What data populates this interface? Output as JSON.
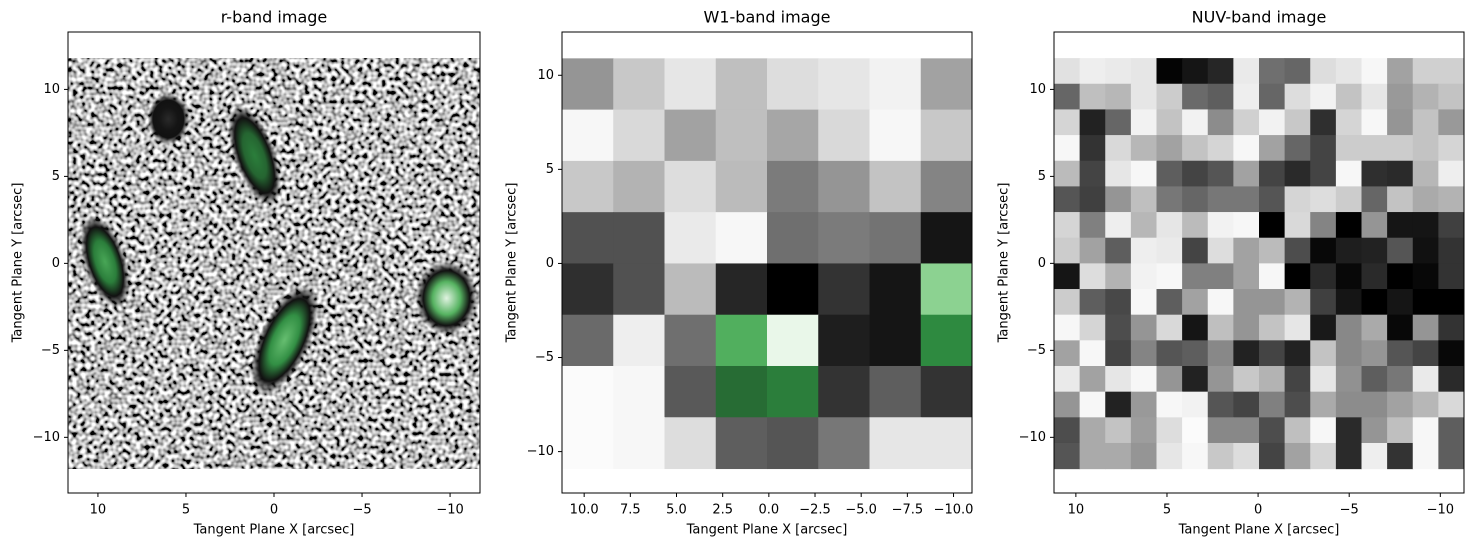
{
  "chart_data": [
    {
      "type": "image",
      "title": "r-band image",
      "xlabel": "Tangent Plane X [arcsec]",
      "ylabel": "Tangent Plane Y [arcsec]",
      "xlim": [
        11.7,
        -11.7
      ],
      "ylim": [
        -13.2,
        13.3
      ],
      "extent": [
        11.7,
        -11.7,
        -11.8,
        11.8
      ],
      "xticks": [
        10,
        5,
        0,
        {
          "value": -5,
          "label": "−5"
        },
        {
          "value": -10,
          "label": "−10"
        }
      ],
      "yticks": [
        {
          "value": -10,
          "label": "−10"
        },
        {
          "value": -5,
          "label": "−5"
        },
        0,
        5,
        10
      ],
      "sources": [
        {
          "x": 6.0,
          "y": 8.3,
          "a": 1.1,
          "b": 0.9,
          "angle": 0,
          "peak": 50
        },
        {
          "x": 1.1,
          "y": 6.2,
          "a": 2.3,
          "b": 0.9,
          "angle": -20,
          "peak": 68
        },
        {
          "x": 9.6,
          "y": 0.1,
          "a": 2.1,
          "b": 0.9,
          "angle": -18,
          "peak": 76
        },
        {
          "x": -0.6,
          "y": -4.4,
          "a": 2.6,
          "b": 1.1,
          "angle": 25,
          "peak": 82
        },
        {
          "x": -9.8,
          "y": -2.0,
          "a": 1.6,
          "b": 1.35,
          "angle": 0,
          "peak": 98
        }
      ]
    },
    {
      "type": "image",
      "title": "W1-band image",
      "xlabel": "Tangent Plane X [arcsec]",
      "ylabel": "Tangent Plane Y [arcsec]",
      "xlim": [
        11.2,
        -11.0
      ],
      "ylim": [
        -12.2,
        12.3
      ],
      "extent": [
        11.2,
        -11.0,
        -10.9,
        10.9
      ],
      "xticks": [
        {
          "value": 10,
          "label": "10.0"
        },
        7.5,
        {
          "value": 5,
          "label": "5.0"
        },
        2.5,
        {
          "value": 0,
          "label": "0.0"
        },
        {
          "value": -2.5,
          "label": "−2.5"
        },
        {
          "value": -5,
          "label": "−5.0"
        },
        {
          "value": -7.5,
          "label": "−7.5"
        },
        {
          "value": -10,
          "label": "−10.0"
        }
      ],
      "yticks": [
        {
          "value": -10,
          "label": "−10"
        },
        {
          "value": -5,
          "label": "−5"
        },
        0,
        5,
        10
      ],
      "values": [
        [
          25,
          13,
          6,
          15,
          8,
          6,
          3,
          22
        ],
        [
          2,
          9,
          22,
          15,
          21,
          9,
          2,
          13
        ],
        [
          13,
          18,
          8,
          16,
          31,
          25,
          14,
          29
        ],
        [
          41,
          41,
          5,
          2,
          34,
          31,
          33,
          55
        ],
        [
          49,
          41,
          16,
          51,
          60,
          48,
          55,
          88
        ],
        [
          35,
          4,
          34,
          78,
          99,
          53,
          55,
          70
        ],
        [
          1,
          2,
          39,
          65,
          68,
          48,
          38,
          48
        ],
        [
          1,
          2,
          8,
          38,
          40,
          32,
          6,
          6
        ]
      ]
    },
    {
      "type": "image",
      "title": "NUV-band image",
      "xlabel": "Tangent Plane X [arcsec]",
      "ylabel": "Tangent Plane Y [arcsec]",
      "xlim": [
        11.2,
        -11.3
      ],
      "ylim": [
        -13.2,
        13.3
      ],
      "extent": [
        11.2,
        -11.3,
        -11.8,
        11.8
      ],
      "xticks": [
        10,
        5,
        0,
        {
          "value": -5,
          "label": "−5"
        },
        {
          "value": -10,
          "label": "−10"
        }
      ],
      "yticks": [
        {
          "value": -10,
          "label": "−10"
        },
        {
          "value": -5,
          "label": "−5"
        },
        0,
        5,
        10
      ],
      "values": [
        [
          7,
          4,
          5,
          6,
          59,
          55,
          51,
          5,
          34,
          36,
          8,
          6,
          2,
          22,
          11,
          11
        ],
        [
          36,
          15,
          17,
          6,
          12,
          35,
          38,
          4,
          36,
          8,
          3,
          14,
          6,
          24,
          18,
          14
        ],
        [
          10,
          52,
          36,
          3,
          14,
          3,
          27,
          11,
          3,
          13,
          49,
          10,
          2,
          25,
          14,
          24
        ],
        [
          2,
          48,
          9,
          17,
          22,
          14,
          10,
          2,
          22,
          36,
          44,
          12,
          12,
          12,
          14,
          10
        ],
        [
          16,
          44,
          6,
          2,
          38,
          44,
          40,
          22,
          44,
          50,
          44,
          2,
          49,
          50,
          17,
          4
        ],
        [
          40,
          45,
          25,
          15,
          32,
          36,
          32,
          32,
          40,
          10,
          8,
          12,
          36,
          14,
          20,
          18
        ],
        [
          10,
          30,
          4,
          17,
          6,
          16,
          3,
          2,
          60,
          9,
          29,
          60,
          25,
          55,
          55,
          45
        ],
        [
          12,
          22,
          38,
          4,
          5,
          44,
          8,
          22,
          16,
          42,
          58,
          53,
          52,
          40,
          56,
          48
        ],
        [
          55,
          8,
          18,
          3,
          2,
          30,
          30,
          22,
          2,
          60,
          50,
          58,
          50,
          60,
          58,
          48
        ],
        [
          12,
          38,
          43,
          2,
          38,
          22,
          2,
          25,
          25,
          18,
          45,
          55,
          60,
          55,
          60,
          60
        ],
        [
          2,
          10,
          42,
          25,
          9,
          55,
          15,
          25,
          14,
          6,
          54,
          28,
          20,
          58,
          25,
          48
        ],
        [
          22,
          2,
          44,
          29,
          40,
          38,
          28,
          52,
          44,
          52,
          14,
          28,
          25,
          40,
          44,
          58
        ],
        [
          5,
          22,
          6,
          2,
          25,
          52,
          25,
          13,
          18,
          44,
          6,
          26,
          38,
          32,
          5,
          50
        ],
        [
          25,
          2,
          52,
          24,
          2,
          3,
          40,
          44,
          30,
          42,
          20,
          27,
          27,
          22,
          17,
          9
        ],
        [
          42,
          20,
          14,
          23,
          8,
          1,
          28,
          28,
          42,
          15,
          2,
          50,
          25,
          15,
          2,
          38
        ],
        [
          40,
          20,
          20,
          25,
          6,
          2,
          13,
          8,
          44,
          22,
          10,
          50,
          4,
          48,
          2,
          38
        ]
      ]
    }
  ]
}
